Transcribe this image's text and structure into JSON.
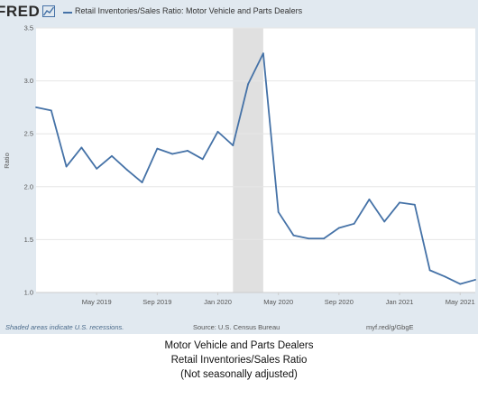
{
  "header": {
    "logo_text": "FRED",
    "legend_label": "Retail Inventories/Sales Ratio: Motor Vehicle and Parts Dealers"
  },
  "colors": {
    "panel_bg": "#e1e9f0",
    "series_line": "#4572a7",
    "recession_shade": "#e0e0e0",
    "grid": "#e6e6e6"
  },
  "chart_data": {
    "type": "line",
    "x": [
      "2019-01",
      "2019-02",
      "2019-03",
      "2019-04",
      "2019-05",
      "2019-06",
      "2019-07",
      "2019-08",
      "2019-09",
      "2019-10",
      "2019-11",
      "2019-12",
      "2020-01",
      "2020-02",
      "2020-03",
      "2020-04",
      "2020-05",
      "2020-06",
      "2020-07",
      "2020-08",
      "2020-09",
      "2020-10",
      "2020-11",
      "2020-12",
      "2021-01",
      "2021-02",
      "2021-03",
      "2021-04",
      "2021-05",
      "2021-06"
    ],
    "series": [
      {
        "values": [
          2.75,
          2.72,
          2.19,
          2.37,
          2.17,
          2.29,
          2.16,
          2.04,
          2.36,
          2.31,
          2.34,
          2.26,
          2.52,
          2.39,
          2.97,
          3.26,
          1.76,
          1.54,
          1.51,
          1.51,
          1.61,
          1.65,
          1.88,
          1.67,
          1.85,
          1.83,
          1.21,
          1.15,
          1.08,
          1.12
        ]
      }
    ],
    "recessions": [
      {
        "start": "2020-02",
        "end": "2020-04"
      }
    ],
    "xlabel": "",
    "ylabel": "Ratio",
    "ylim": [
      1.0,
      3.5
    ],
    "yticks": [
      "1.0",
      "1.5",
      "2.0",
      "2.5",
      "3.0",
      "3.5"
    ],
    "xticks": [
      {
        "at": "2019-05",
        "label": "May 2019"
      },
      {
        "at": "2019-09",
        "label": "Sep 2019"
      },
      {
        "at": "2020-01",
        "label": "Jan 2020"
      },
      {
        "at": "2020-05",
        "label": "May 2020"
      },
      {
        "at": "2020-09",
        "label": "Sep 2020"
      },
      {
        "at": "2021-01",
        "label": "Jan 2021"
      },
      {
        "at": "2021-05",
        "label": "May 2021"
      }
    ],
    "grid": true
  },
  "footer": {
    "note": "Shaded areas indicate U.S. recessions.",
    "source": "Source: U.S. Census Bureau",
    "url": "myf.red/g/GbgE"
  },
  "caption": {
    "line1": "Motor Vehicle and Parts Dealers",
    "line2": "Retail Inventories/Sales Ratio",
    "line3": "(Not seasonally adjusted)"
  }
}
